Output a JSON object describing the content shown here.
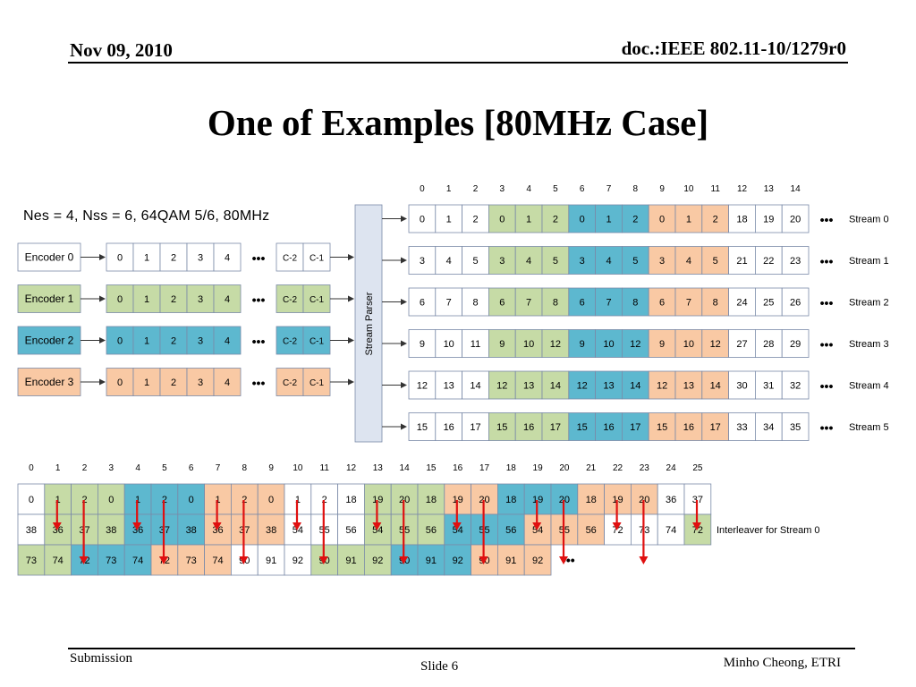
{
  "header": {
    "date": "Nov 09, 2010",
    "doc_id": "doc.:IEEE 802.11-10/1279r0"
  },
  "title": "One of Examples [80MHz Case]",
  "params": "Nes = 4, Nss = 6, 64QAM 5/6, 80MHz",
  "colors": {
    "green": "#c6dba6",
    "blue": "#5db8cf",
    "orange": "#f9c9a4",
    "white": "#ffffff",
    "parser": "#dde4f0",
    "arrow": "#e01010",
    "border": "#7a8aa8"
  },
  "encoders": [
    {
      "label": "Encoder 0",
      "color": "white",
      "cells": [
        "0",
        "1",
        "2",
        "3",
        "4"
      ],
      "tail": [
        "C-2",
        "C-1"
      ]
    },
    {
      "label": "Encoder 1",
      "color": "green",
      "cells": [
        "0",
        "1",
        "2",
        "3",
        "4"
      ],
      "tail": [
        "C-2",
        "C-1"
      ]
    },
    {
      "label": "Encoder 2",
      "color": "blue",
      "cells": [
        "0",
        "1",
        "2",
        "3",
        "4"
      ],
      "tail": [
        "C-2",
        "C-1"
      ]
    },
    {
      "label": "Encoder 3",
      "color": "orange",
      "cells": [
        "0",
        "1",
        "2",
        "3",
        "4"
      ],
      "tail": [
        "C-2",
        "C-1"
      ]
    }
  ],
  "parser_label": "Stream Parser",
  "ellipsis": "•••",
  "stream_headers": [
    "0",
    "1",
    "2",
    "3",
    "4",
    "5",
    "6",
    "7",
    "8",
    "9",
    "10",
    "11",
    "12",
    "13",
    "14"
  ],
  "stream_color_pattern": [
    "white",
    "white",
    "white",
    "green",
    "green",
    "green",
    "blue",
    "blue",
    "blue",
    "orange",
    "orange",
    "orange",
    "white",
    "white",
    "white"
  ],
  "streams": [
    {
      "label": "Stream 0",
      "cells": [
        "0",
        "1",
        "2",
        "0",
        "1",
        "2",
        "0",
        "1",
        "2",
        "0",
        "1",
        "2",
        "18",
        "19",
        "20"
      ]
    },
    {
      "label": "Stream 1",
      "cells": [
        "3",
        "4",
        "5",
        "3",
        "4",
        "5",
        "3",
        "4",
        "5",
        "3",
        "4",
        "5",
        "21",
        "22",
        "23"
      ]
    },
    {
      "label": "Stream 2",
      "cells": [
        "6",
        "7",
        "8",
        "6",
        "7",
        "8",
        "6",
        "7",
        "8",
        "6",
        "7",
        "8",
        "24",
        "25",
        "26"
      ]
    },
    {
      "label": "Stream 3",
      "cells": [
        "9",
        "10",
        "11",
        "9",
        "10",
        "12",
        "9",
        "10",
        "12",
        "9",
        "10",
        "12",
        "27",
        "28",
        "29"
      ]
    },
    {
      "label": "Stream 4",
      "cells": [
        "12",
        "13",
        "14",
        "12",
        "13",
        "14",
        "12",
        "13",
        "14",
        "12",
        "13",
        "14",
        "30",
        "31",
        "32"
      ]
    },
    {
      "label": "Stream 5",
      "cells": [
        "15",
        "16",
        "17",
        "15",
        "16",
        "17",
        "15",
        "16",
        "17",
        "15",
        "16",
        "17",
        "33",
        "34",
        "35"
      ]
    }
  ],
  "interleaver": {
    "headers": [
      "0",
      "1",
      "2",
      "3",
      "4",
      "5",
      "6",
      "7",
      "8",
      "9",
      "10",
      "11",
      "12",
      "13",
      "14",
      "15",
      "16",
      "17",
      "18",
      "19",
      "20",
      "21",
      "22",
      "23",
      "24",
      "25"
    ],
    "label": "Interleaver for Stream 0",
    "rows": [
      {
        "cells": [
          "0",
          "1",
          "2",
          "0",
          "1",
          "2",
          "0",
          "1",
          "2",
          "0",
          "1",
          "2",
          "18",
          "19",
          "20",
          "18",
          "19",
          "20",
          "18",
          "19",
          "20",
          "18",
          "19",
          "20",
          "36",
          "37"
        ],
        "colors": [
          "white",
          "green",
          "green",
          "green",
          "blue",
          "blue",
          "blue",
          "orange",
          "orange",
          "orange",
          "white",
          "white",
          "white",
          "green",
          "green",
          "green",
          "orange",
          "orange",
          "blue",
          "blue",
          "blue",
          "orange",
          "orange",
          "orange",
          "white",
          "white"
        ]
      },
      {
        "cells": [
          "38",
          "36",
          "37",
          "38",
          "36",
          "37",
          "38",
          "36",
          "37",
          "38",
          "54",
          "55",
          "56",
          "54",
          "55",
          "56",
          "54",
          "55",
          "56",
          "54",
          "55",
          "56",
          "72",
          "73",
          "74",
          "72"
        ],
        "colors": [
          "white",
          "green",
          "green",
          "green",
          "blue",
          "blue",
          "blue",
          "orange",
          "orange",
          "orange",
          "white",
          "white",
          "white",
          "green",
          "green",
          "green",
          "blue",
          "blue",
          "blue",
          "orange",
          "orange",
          "orange",
          "white",
          "white",
          "white",
          "green"
        ]
      },
      {
        "cells": [
          "73",
          "74",
          "72",
          "73",
          "74",
          "72",
          "73",
          "74",
          "90",
          "91",
          "92",
          "90",
          "91",
          "92",
          "90",
          "91",
          "92",
          "90",
          "91",
          "92"
        ],
        "colors": [
          "green",
          "green",
          "blue",
          "blue",
          "blue",
          "orange",
          "orange",
          "orange",
          "white",
          "white",
          "white",
          "green",
          "green",
          "green",
          "blue",
          "blue",
          "blue",
          "orange",
          "orange",
          "orange"
        ]
      }
    ],
    "arrow_columns": [
      1,
      2,
      4,
      5,
      7,
      8,
      10,
      11,
      13,
      14,
      16,
      17,
      19,
      20,
      22,
      23,
      25
    ]
  },
  "footer": {
    "submission": "Submission",
    "slide": "Slide 6",
    "author": "Minho Cheong, ETRI"
  }
}
